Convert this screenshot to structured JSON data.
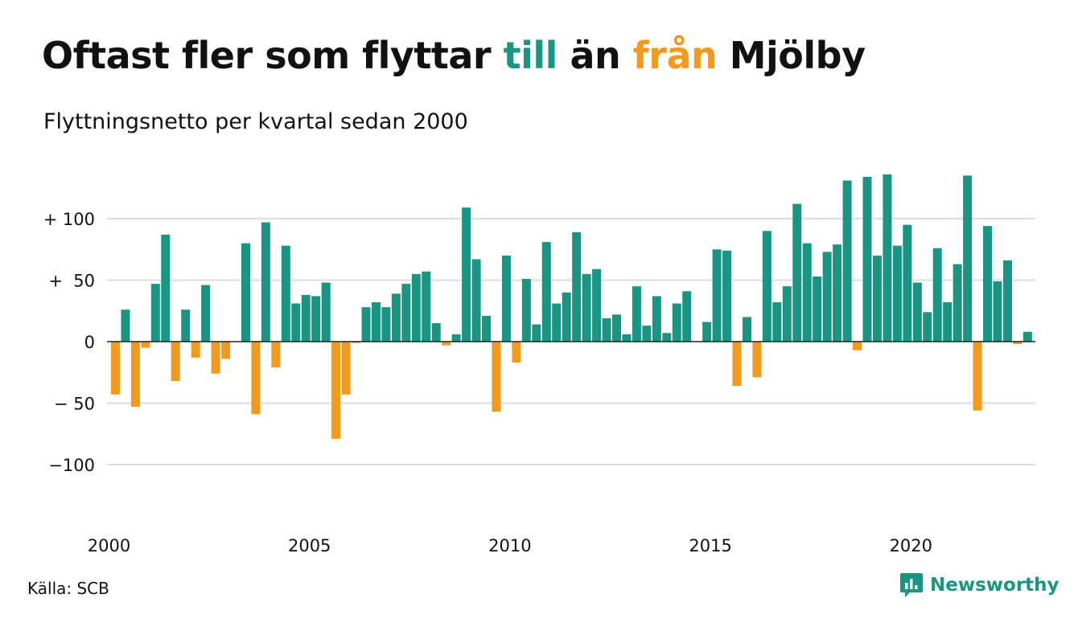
{
  "header": {
    "title_pre": "Oftast fler som flyttar",
    "title_till": "till",
    "title_mid": "än",
    "title_fran": "från",
    "title_post": "Mjölby",
    "subtitle": "Flyttningsnetto per kvartal sedan 2000"
  },
  "footer": {
    "source": "Källa: SCB",
    "brand": "Newsworthy",
    "brand_icon": "chat-bar-icon"
  },
  "colors": {
    "positive": "#1a9583",
    "negative": "#f29a1d",
    "grid": "#dddddd",
    "zero_line": "#222222"
  },
  "chart_data": {
    "type": "bar",
    "x_start": "2000 Q1",
    "xticks": [
      "2000",
      "2005",
      "2010",
      "2015",
      "2020"
    ],
    "yticks": [
      {
        "value": 100,
        "label": "+ 100"
      },
      {
        "value": 50,
        "label": "+  50"
      },
      {
        "value": 0,
        "label": "0"
      },
      {
        "value": -50,
        "label": "− 50"
      },
      {
        "value": -100,
        "label": "−100"
      }
    ],
    "ylim": [
      -140,
      140
    ],
    "values": [
      -43,
      26,
      -53,
      -5,
      47,
      87,
      -32,
      26,
      -13,
      46,
      -26,
      -14,
      0,
      80,
      -59,
      97,
      -21,
      78,
      31,
      38,
      37,
      48,
      -79,
      -43,
      -1,
      28,
      32,
      28,
      39,
      47,
      55,
      57,
      15,
      -3,
      6,
      109,
      67,
      21,
      -57,
      70,
      -17,
      51,
      14,
      81,
      31,
      40,
      89,
      55,
      59,
      19,
      22,
      6,
      45,
      13,
      37,
      7,
      31,
      41,
      0,
      16,
      75,
      74,
      -36,
      20,
      -29,
      90,
      32,
      45,
      112,
      80,
      53,
      73,
      79,
      131,
      -7,
      134,
      70,
      136,
      78,
      95,
      48,
      24,
      76,
      32,
      63,
      135,
      -56,
      94,
      49,
      66,
      -2,
      8
    ]
  }
}
